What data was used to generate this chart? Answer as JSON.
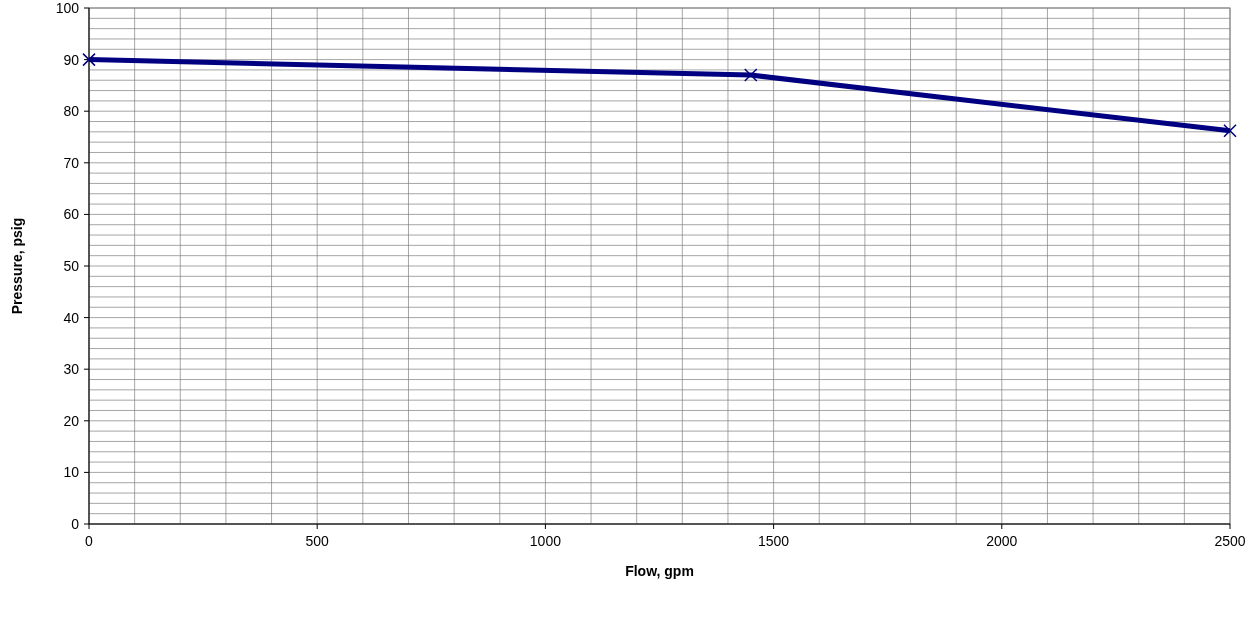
{
  "chart_data": {
    "type": "line",
    "xlabel": "Flow, gpm",
    "ylabel": "Pressure, psig",
    "x": [
      0,
      1450,
      2500
    ],
    "series": [
      {
        "color": "#000080",
        "values": [
          90,
          87,
          76.2
        ]
      }
    ],
    "xlim": [
      0,
      2500
    ],
    "ylim": [
      0,
      100
    ],
    "xticks": [
      0,
      {
        "value": 100,
        "label": null
      },
      {
        "value": 200,
        "label": null
      },
      {
        "value": 300,
        "label": null
      },
      {
        "value": 400,
        "label": null
      },
      500,
      {
        "value": 600,
        "label": null
      },
      {
        "value": 700,
        "label": null
      },
      {
        "value": 800,
        "label": null
      },
      {
        "value": 900,
        "label": null
      },
      1000,
      {
        "value": 1100,
        "label": null
      },
      {
        "value": 1200,
        "label": null
      },
      {
        "value": 1300,
        "label": null
      },
      {
        "value": 1400,
        "label": null
      },
      1500,
      {
        "value": 1600,
        "label": null
      },
      {
        "value": 1700,
        "label": null
      },
      {
        "value": 1800,
        "label": null
      },
      {
        "value": 1900,
        "label": null
      },
      2000,
      {
        "value": 2100,
        "label": null
      },
      {
        "value": 2200,
        "label": null
      },
      {
        "value": 2300,
        "label": null
      },
      {
        "value": 2400,
        "label": null
      },
      2500
    ],
    "yticks": [
      0,
      {
        "value": 2,
        "label": null
      },
      {
        "value": 4,
        "label": null
      },
      {
        "value": 6,
        "label": null
      },
      {
        "value": 8,
        "label": null
      },
      10,
      {
        "value": 12,
        "label": null
      },
      {
        "value": 14,
        "label": null
      },
      {
        "value": 16,
        "label": null
      },
      {
        "value": 18,
        "label": null
      },
      20,
      {
        "value": 22,
        "label": null
      },
      {
        "value": 24,
        "label": null
      },
      {
        "value": 26,
        "label": null
      },
      {
        "value": 28,
        "label": null
      },
      30,
      {
        "value": 32,
        "label": null
      },
      {
        "value": 34,
        "label": null
      },
      {
        "value": 36,
        "label": null
      },
      {
        "value": 38,
        "label": null
      },
      40,
      {
        "value": 42,
        "label": null
      },
      {
        "value": 44,
        "label": null
      },
      {
        "value": 46,
        "label": null
      },
      {
        "value": 48,
        "label": null
      },
      50,
      {
        "value": 52,
        "label": null
      },
      {
        "value": 54,
        "label": null
      },
      {
        "value": 56,
        "label": null
      },
      {
        "value": 58,
        "label": null
      },
      60,
      {
        "value": 62,
        "label": null
      },
      {
        "value": 64,
        "label": null
      },
      {
        "value": 66,
        "label": null
      },
      {
        "value": 68,
        "label": null
      },
      70,
      {
        "value": 72,
        "label": null
      },
      {
        "value": 74,
        "label": null
      },
      {
        "value": 76,
        "label": null
      },
      {
        "value": 78,
        "label": null
      },
      80,
      {
        "value": 82,
        "label": null
      },
      {
        "value": 84,
        "label": null
      },
      {
        "value": 86,
        "label": null
      },
      {
        "value": 88,
        "label": null
      },
      90,
      {
        "value": 92,
        "label": null
      },
      {
        "value": 94,
        "label": null
      },
      {
        "value": 96,
        "label": null
      },
      {
        "value": 98,
        "label": null
      },
      100
    ],
    "grid": true,
    "marker": "cross",
    "line_style": "solid"
  }
}
